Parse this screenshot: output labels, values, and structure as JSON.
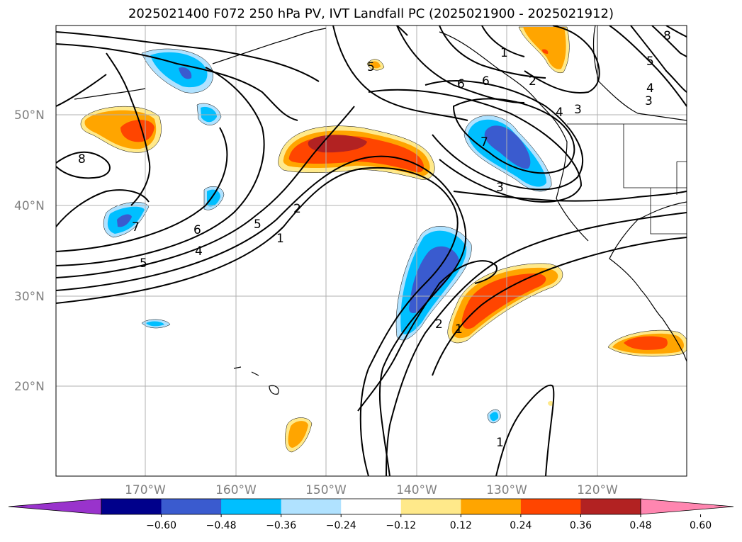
{
  "title": "2025021400 F072 250 hPa PV, IVT Landfall PC (2025021900 - 2025021912)",
  "lat_labels": [
    "50°N",
    "40°N",
    "30°N",
    "20°N"
  ],
  "lon_labels": [
    "170°W",
    "160°W",
    "150°W",
    "140°W",
    "130°W",
    "120°W"
  ],
  "colorbar": {
    "ticks": [
      "−0.60",
      "−0.48",
      "−0.36",
      "−0.24",
      "−0.12",
      "0.12",
      "0.24",
      "0.36",
      "0.48",
      "0.60"
    ],
    "colors": [
      "#9933cc",
      "#00008b",
      "#3a5bcf",
      "#00bfff",
      "#b0e2ff",
      "#ffffff",
      "#ffe98a",
      "#ffa500",
      "#ff4500",
      "#b22222",
      "#ff86b0"
    ]
  },
  "contour_labels": [
    "8",
    "5",
    "6",
    "1",
    "2",
    "6",
    "4",
    "5",
    "4",
    "3",
    "5",
    "7",
    "8",
    "6",
    "4",
    "5",
    "3",
    "2",
    "1",
    "7",
    "3",
    "2",
    "1",
    "1"
  ]
}
